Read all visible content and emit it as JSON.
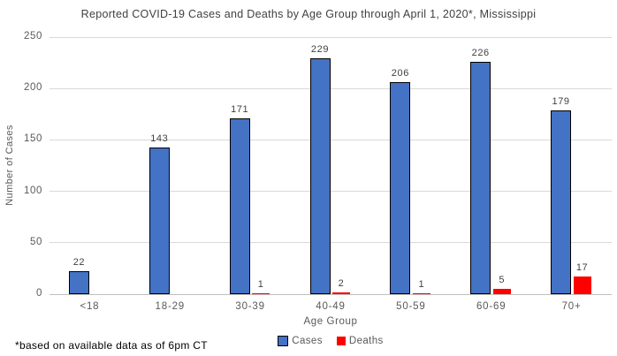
{
  "chart_data": {
    "type": "bar",
    "title": "Reported COVID-19 Cases and Deaths by Age Group through April 1, 2020*, Mississippi",
    "categories": [
      "<18",
      "18-29",
      "30-39",
      "40-49",
      "50-59",
      "60-69",
      "70+"
    ],
    "series": [
      {
        "name": "Cases",
        "color": "#4472C4",
        "border_color": "#000000",
        "values": [
          22,
          143,
          171,
          229,
          206,
          226,
          179
        ]
      },
      {
        "name": "Deaths",
        "color": "#FF0000",
        "values": [
          0,
          0,
          1,
          2,
          1,
          5,
          17
        ]
      }
    ],
    "xlabel": "Age Group",
    "ylabel": "Number of Cases",
    "ylim": [
      0,
      250
    ],
    "yticks": [
      0,
      50,
      100,
      150,
      200,
      250
    ],
    "grid": true,
    "legend_position": "bottom",
    "annotation": "*based on available data as of 6pm CT",
    "colors": {
      "gridline": "#D9D9D9",
      "axis_line": "#BFBFBF",
      "tick_text": "#595959",
      "label_text": "#404040"
    }
  }
}
